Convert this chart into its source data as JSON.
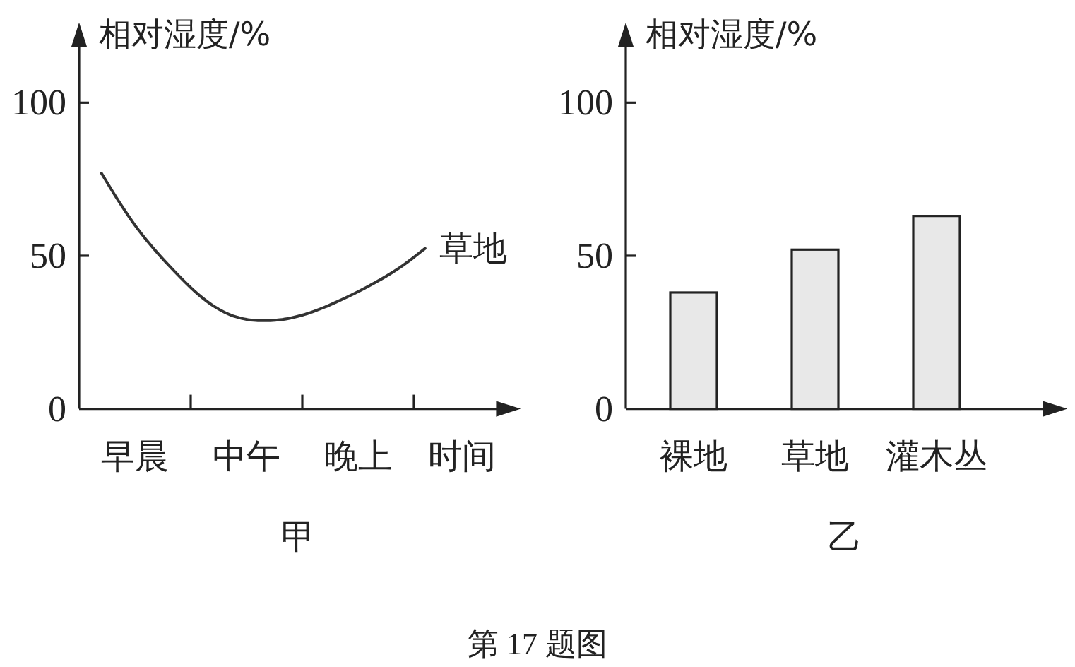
{
  "chart_data": [
    {
      "type": "line",
      "title": "甲",
      "xlabel": "时间",
      "ylabel": "相对湿度/%",
      "categories": [
        null,
        null,
        null,
        "早晨",
        null,
        null,
        null,
        null,
        null,
        null,
        null,
        null,
        null,
        "中午",
        null,
        null,
        null,
        null,
        null,
        null,
        null,
        null,
        null,
        "晚上",
        null,
        null,
        null,
        null,
        null,
        null
      ],
      "series": [
        {
          "name": "草地",
          "color": "#333333",
          "values": [
            77,
            71,
            65.3,
            60,
            55.3,
            51,
            47,
            43.2,
            39.6,
            36.4,
            33.7,
            31.6,
            30.1,
            29.2,
            28.8,
            28.8,
            29.1,
            29.7,
            30.6,
            31.8,
            33.2,
            34.8,
            36.5,
            38.3,
            40.2,
            42.2,
            44.4,
            46.8,
            49.5,
            52.4
          ]
        }
      ],
      "ylim": [
        0,
        125
      ],
      "yticks": [
        0,
        50,
        100
      ],
      "annotations": [
        "第 17 题图"
      ]
    },
    {
      "type": "bar",
      "title": "乙",
      "ylabel": "相对湿度/%",
      "categories": [
        "裸地",
        "草地",
        "灌木丛"
      ],
      "values": [
        38,
        52,
        63
      ],
      "color": "#e8e8e8",
      "ylim": [
        0,
        125
      ],
      "yticks": [
        0,
        50,
        100
      ]
    }
  ]
}
